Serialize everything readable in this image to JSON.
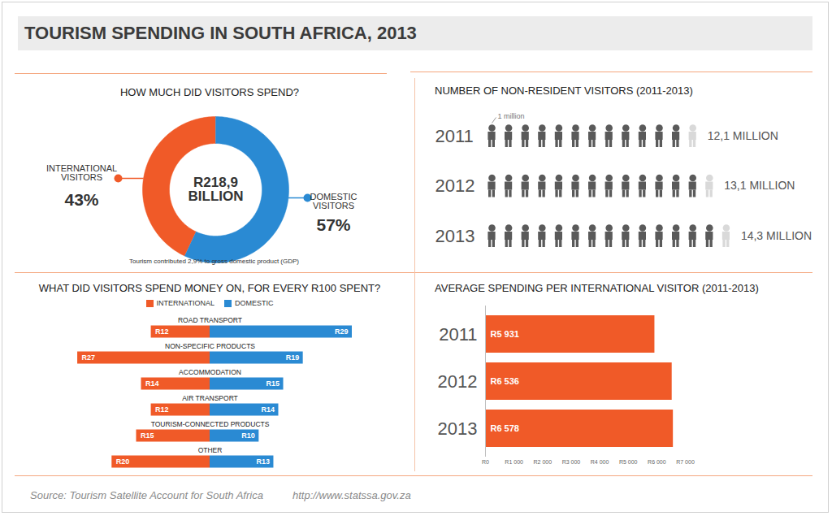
{
  "title": "TOURISM SPENDING IN SOUTH AFRICA, 2013",
  "source": "Source: Tourism Satellite Account for South Africa",
  "source_url": "http://www.statssa.gov.za",
  "chart_data": [
    {
      "type": "pie",
      "title": "HOW MUCH DID VISITORS SPEND?",
      "categories": [
        "INTERNATIONAL VISITORS",
        "DOMESTIC VISITORS"
      ],
      "values": [
        43,
        57
      ],
      "value_labels": [
        "43%",
        "57%"
      ],
      "colors": [
        "#f05a28",
        "#2a8ad3"
      ],
      "data_labels": true,
      "annotations": [
        "R218,9 BILLION",
        "Tourism contributed 2,9% to gross domestic product (GDP)"
      ]
    },
    {
      "type": "pictogram",
      "title": "NUMBER OF NON-RESIDENT VISITORS (2011-2013)",
      "categories": [
        "2011",
        "2012",
        "2013"
      ],
      "values": [
        12.1,
        13.1,
        14.3
      ],
      "value_labels": [
        "12,1 MILLION",
        "13,1 MILLION",
        "14,3 MILLION"
      ],
      "color": "#5a5a5a",
      "data_labels": true,
      "annotations": [
        "1 million"
      ]
    },
    {
      "type": "bar",
      "orientation": "horizontal",
      "title": "WHAT DID VISITORS SPEND MONEY ON, FOR EVERY R100 SPENT?",
      "categories": [
        "ROAD TRANSPORT",
        "NON-SPECIFIC PRODUCTS",
        "ACCOMMODATION",
        "AIR TRANSPORT",
        "TOURISM-CONNECTED PRODUCTS",
        "OTHER"
      ],
      "series": [
        {
          "name": "INTERNATIONAL",
          "color": "#f05a28",
          "values": [
            12,
            27,
            14,
            12,
            15,
            20
          ],
          "value_labels": [
            "R12",
            "R27",
            "R14",
            "R12",
            "R15",
            "R20"
          ]
        },
        {
          "name": "DOMESTIC",
          "color": "#2a8ad3",
          "values": [
            29,
            19,
            15,
            14,
            10,
            13
          ],
          "value_labels": [
            "R29",
            "R19",
            "R15",
            "R14",
            "R10",
            "R13"
          ]
        }
      ],
      "data_labels": true,
      "legend": "top"
    },
    {
      "type": "bar",
      "orientation": "horizontal",
      "title": "AVERAGE SPENDING PER INTERNATIONAL VISITOR (2011-2013)",
      "categories": [
        "2011",
        "2012",
        "2013"
      ],
      "values": [
        5931,
        6536,
        6578
      ],
      "value_labels": [
        "R5 931",
        "R6 536",
        "R6 578"
      ],
      "color": "#f05a28",
      "data_labels": true,
      "grid": false,
      "xlim": [
        0,
        7000
      ],
      "xticks": [
        {
          "value": 0,
          "label": "R0"
        },
        {
          "value": 1000,
          "label": "R1 000"
        },
        {
          "value": 2000,
          "label": "R2 000"
        },
        {
          "value": 3000,
          "label": "R3 000"
        },
        {
          "value": 4000,
          "label": "R4 000"
        },
        {
          "value": 5000,
          "label": "R5 000"
        },
        {
          "value": 6000,
          "label": "R6 000"
        },
        {
          "value": 7000,
          "label": "R7 000"
        }
      ]
    }
  ]
}
